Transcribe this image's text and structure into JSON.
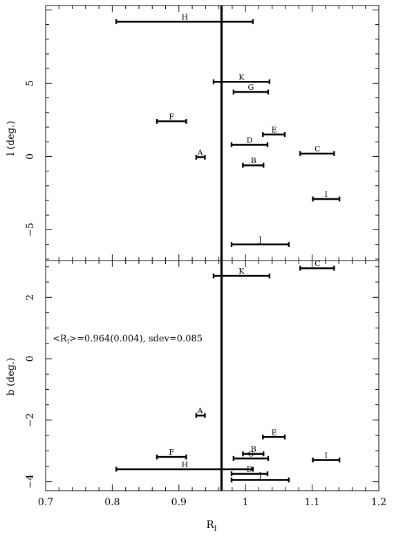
{
  "chart_data": [
    {
      "panel": "top",
      "type": "errorbar",
      "ylabel": "l (deg.)",
      "xlim": [
        0.7,
        1.2
      ],
      "ylim": [
        -7.1,
        10.3
      ],
      "yticks": [
        -5,
        0,
        5
      ],
      "ytick_labels": [
        "−5",
        "0",
        "5"
      ],
      "reference_line_x": 0.964,
      "points": [
        {
          "label": "H",
          "x": 0.909,
          "xmin": 0.806,
          "xmax": 1.011,
          "y": 9.2
        },
        {
          "label": "K",
          "x": 0.994,
          "xmin": 0.952,
          "xmax": 1.036,
          "y": 5.1
        },
        {
          "label": "G",
          "x": 1.008,
          "xmin": 0.982,
          "xmax": 1.034,
          "y": 4.4
        },
        {
          "label": "F",
          "x": 0.889,
          "xmin": 0.867,
          "xmax": 0.911,
          "y": 2.4
        },
        {
          "label": "E",
          "x": 1.043,
          "xmin": 1.026,
          "xmax": 1.059,
          "y": 1.5
        },
        {
          "label": "D",
          "x": 1.006,
          "xmin": 0.979,
          "xmax": 1.033,
          "y": 0.8
        },
        {
          "label": "C",
          "x": 1.108,
          "xmin": 1.082,
          "xmax": 1.133,
          "y": 0.2
        },
        {
          "label": "A",
          "x": 0.932,
          "xmin": 0.926,
          "xmax": 0.939,
          "y": -0.05
        },
        {
          "label": "B",
          "x": 1.012,
          "xmin": 0.996,
          "xmax": 1.027,
          "y": -0.6
        },
        {
          "label": "I",
          "x": 1.121,
          "xmin": 1.101,
          "xmax": 1.141,
          "y": -2.9
        },
        {
          "label": "J",
          "x": 1.022,
          "xmin": 0.979,
          "xmax": 1.065,
          "y": -6.0
        }
      ]
    },
    {
      "panel": "bottom",
      "type": "errorbar",
      "ylabel": "b (deg.)",
      "xlabel": "R",
      "xlabel_sub": "I",
      "xlim": [
        0.7,
        1.2
      ],
      "ylim": [
        -4.3,
        3.2
      ],
      "xticks": [
        0.7,
        0.8,
        0.9,
        1,
        1.1,
        1.2
      ],
      "xtick_labels": [
        "0.7",
        "0.8",
        "0.9",
        "1",
        "1.1",
        "1.2"
      ],
      "yticks": [
        -4,
        -2,
        0,
        2
      ],
      "ytick_labels": [
        "−4",
        "−2",
        "0",
        "2"
      ],
      "reference_line_x": 0.964,
      "annotation": {
        "open": "<R",
        "sub": "I",
        "rest": ">=0.964(0.004), sdev=0.085"
      },
      "points": [
        {
          "label": "C",
          "x": 1.108,
          "xmin": 1.082,
          "xmax": 1.133,
          "y": 2.95
        },
        {
          "label": "K",
          "x": 0.994,
          "xmin": 0.952,
          "xmax": 1.036,
          "y": 2.7
        },
        {
          "label": "A",
          "x": 0.932,
          "xmin": 0.926,
          "xmax": 0.939,
          "y": -1.85
        },
        {
          "label": "E",
          "x": 1.043,
          "xmin": 1.026,
          "xmax": 1.059,
          "y": -2.55
        },
        {
          "label": "B",
          "x": 1.012,
          "xmin": 0.996,
          "xmax": 1.027,
          "y": -3.1
        },
        {
          "label": "F",
          "x": 0.889,
          "xmin": 0.867,
          "xmax": 0.911,
          "y": -3.2
        },
        {
          "label": "G",
          "x": 1.008,
          "xmin": 0.982,
          "xmax": 1.034,
          "y": -3.25
        },
        {
          "label": "I",
          "x": 1.121,
          "xmin": 1.101,
          "xmax": 1.141,
          "y": -3.3
        },
        {
          "label": "H",
          "x": 0.909,
          "xmin": 0.806,
          "xmax": 1.011,
          "y": -3.6
        },
        {
          "label": "D",
          "x": 1.006,
          "xmin": 0.979,
          "xmax": 1.033,
          "y": -3.75
        },
        {
          "label": "J",
          "x": 1.022,
          "xmin": 0.979,
          "xmax": 1.065,
          "y": -3.95
        }
      ]
    }
  ]
}
